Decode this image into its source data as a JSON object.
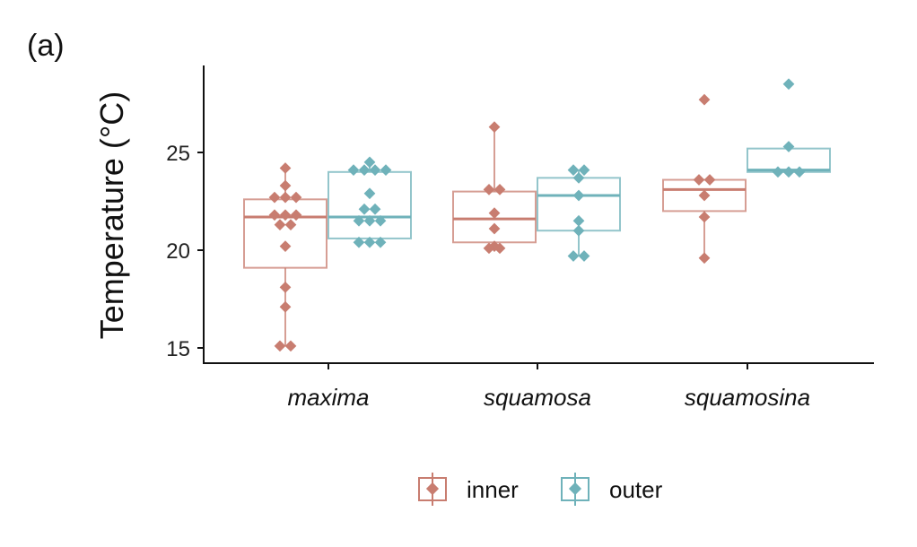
{
  "panel_label": "(a)",
  "chart_data": {
    "type": "box",
    "title": "",
    "xlabel": "",
    "ylabel": "Temperature (°C)",
    "ylim": [
      14.2,
      29.7
    ],
    "yticks": [
      "15",
      "20",
      "25"
    ],
    "ytick_values": [
      15,
      20,
      25
    ],
    "grid": false,
    "legend_position": "bottom",
    "categories": [
      "maxima",
      "squamosa",
      "squamosina"
    ],
    "series": [
      {
        "name": "inner",
        "color": "#c87d70",
        "boxes": [
          {
            "whisker_low": 15.1,
            "q1": 19.1,
            "median": 21.7,
            "q3": 22.6,
            "whisker_high": 24.2,
            "points": [
              24.2,
              23.3,
              22.7,
              22.7,
              22.7,
              21.8,
              21.8,
              21.8,
              21.3,
              21.3,
              20.2,
              18.1,
              17.1,
              15.1,
              15.1
            ]
          },
          {
            "whisker_low": 20.1,
            "q1": 20.4,
            "median": 21.6,
            "q3": 23.0,
            "whisker_high": 26.3,
            "points": [
              26.3,
              23.1,
              23.1,
              21.9,
              21.1,
              20.2,
              20.1,
              20.1
            ]
          },
          {
            "whisker_low": 19.6,
            "q1": 22.0,
            "median": 23.1,
            "q3": 23.6,
            "whisker_high": 23.6,
            "points": [
              27.7,
              23.6,
              23.6,
              22.8,
              21.7,
              19.6
            ]
          }
        ]
      },
      {
        "name": "outer",
        "color": "#6fb2ba",
        "boxes": [
          {
            "whisker_low": 20.4,
            "q1": 20.6,
            "median": 21.7,
            "q3": 24.0,
            "whisker_high": 24.5,
            "points": [
              24.5,
              24.1,
              24.1,
              24.1,
              24.1,
              22.9,
              22.1,
              22.1,
              21.5,
              21.5,
              21.5,
              20.4,
              20.4,
              20.4
            ]
          },
          {
            "whisker_low": 19.7,
            "q1": 21.0,
            "median": 22.8,
            "q3": 23.7,
            "whisker_high": 24.1,
            "points": [
              24.1,
              24.1,
              23.7,
              22.8,
              21.5,
              21.0,
              19.7,
              19.7
            ]
          },
          {
            "whisker_low": 24.0,
            "q1": 24.0,
            "median": 24.1,
            "q3": 25.2,
            "whisker_high": 25.3,
            "points": [
              28.5,
              25.3,
              24.0,
              24.0,
              24.0
            ]
          }
        ]
      }
    ]
  }
}
